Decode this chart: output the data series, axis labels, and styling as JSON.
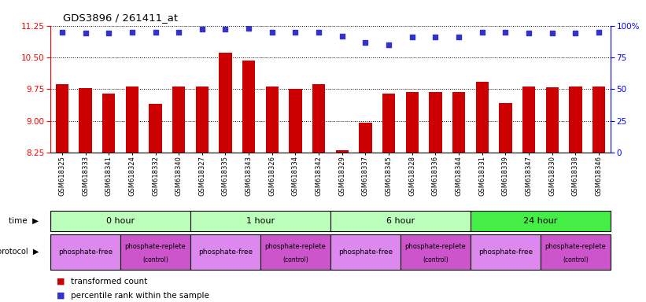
{
  "title": "GDS3896 / 261411_at",
  "samples": [
    "GSM618325",
    "GSM618333",
    "GSM618341",
    "GSM618324",
    "GSM618332",
    "GSM618340",
    "GSM618327",
    "GSM618335",
    "GSM618343",
    "GSM618326",
    "GSM618334",
    "GSM618342",
    "GSM618329",
    "GSM618337",
    "GSM618345",
    "GSM618328",
    "GSM618336",
    "GSM618344",
    "GSM618331",
    "GSM618339",
    "GSM618347",
    "GSM618330",
    "GSM618338",
    "GSM618346"
  ],
  "bar_values": [
    9.87,
    9.78,
    9.65,
    9.82,
    9.4,
    9.82,
    9.82,
    10.62,
    10.43,
    9.82,
    9.75,
    9.87,
    8.3,
    8.95,
    9.65,
    9.68,
    9.68,
    9.68,
    9.92,
    9.42,
    9.82,
    9.8,
    9.82,
    9.82
  ],
  "percentile_values": [
    95,
    94,
    94,
    95,
    95,
    95,
    97,
    97,
    98,
    95,
    95,
    95,
    92,
    87,
    85,
    91,
    91,
    91,
    95,
    95,
    94,
    94,
    94,
    95
  ],
  "ymin": 8.25,
  "ymax": 11.25,
  "yticks": [
    8.25,
    9.0,
    9.75,
    10.5,
    11.25
  ],
  "bar_color": "#cc0000",
  "dot_color": "#3333cc",
  "right_yticks": [
    0,
    25,
    50,
    75,
    100
  ],
  "time_groups": [
    {
      "label": "0 hour",
      "start": 0,
      "end": 6,
      "color": "#bbffbb"
    },
    {
      "label": "1 hour",
      "start": 6,
      "end": 12,
      "color": "#bbffbb"
    },
    {
      "label": "6 hour",
      "start": 12,
      "end": 18,
      "color": "#bbffbb"
    },
    {
      "label": "24 hour",
      "start": 18,
      "end": 24,
      "color": "#44ee44"
    }
  ],
  "protocol_groups": [
    {
      "label": "phosphate-free",
      "start": 0,
      "end": 3,
      "color": "#dd88ee"
    },
    {
      "label": "phosphate-replete\n(control)",
      "start": 3,
      "end": 6,
      "color": "#cc55cc"
    },
    {
      "label": "phosphate-free",
      "start": 6,
      "end": 9,
      "color": "#dd88ee"
    },
    {
      "label": "phosphate-replete\n(control)",
      "start": 9,
      "end": 12,
      "color": "#cc55cc"
    },
    {
      "label": "phosphate-free",
      "start": 12,
      "end": 15,
      "color": "#dd88ee"
    },
    {
      "label": "phosphate-replete\n(control)",
      "start": 15,
      "end": 18,
      "color": "#cc55cc"
    },
    {
      "label": "phosphate-free",
      "start": 18,
      "end": 21,
      "color": "#dd88ee"
    },
    {
      "label": "phosphate-replete\n(control)",
      "start": 21,
      "end": 24,
      "color": "#cc55cc"
    }
  ],
  "legend_red_label": "transformed count",
  "legend_blue_label": "percentile rank within the sample"
}
